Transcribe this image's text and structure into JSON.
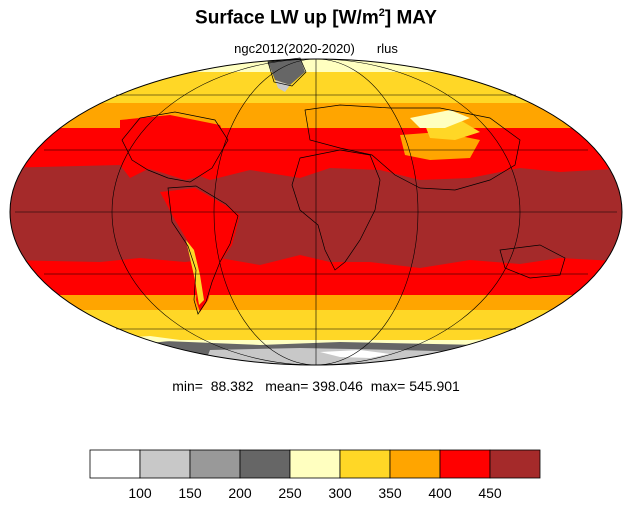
{
  "title": {
    "main": "Surface LW up [W/m",
    "sup": "2",
    "tail": "]  MAY"
  },
  "subtitle": {
    "left": "ngc2012(2020-2020)",
    "right": "rlus"
  },
  "stats": {
    "min_label": "min=",
    "min": "88.382",
    "mean_label": "mean=",
    "mean": "398.046",
    "max_label": "max=",
    "max": "545.901"
  },
  "colorbar": {
    "labels": [
      "100",
      "150",
      "200",
      "250",
      "300",
      "350",
      "400",
      "450"
    ],
    "colors": [
      "#ffffff",
      "#c8c8c8",
      "#999999",
      "#666666",
      "#ffffc0",
      "#ffd726",
      "#ffa500",
      "#ff0000",
      "#a52a2a"
    ]
  },
  "palette": {
    "ocean_tropic": "#a52a2a",
    "band_400": "#ff0000",
    "band_350": "#ffa500",
    "band_300": "#ffd726",
    "band_250": "#ffffc0",
    "ice_grey": "#666666",
    "ice_light": "#c8c8c8"
  }
}
